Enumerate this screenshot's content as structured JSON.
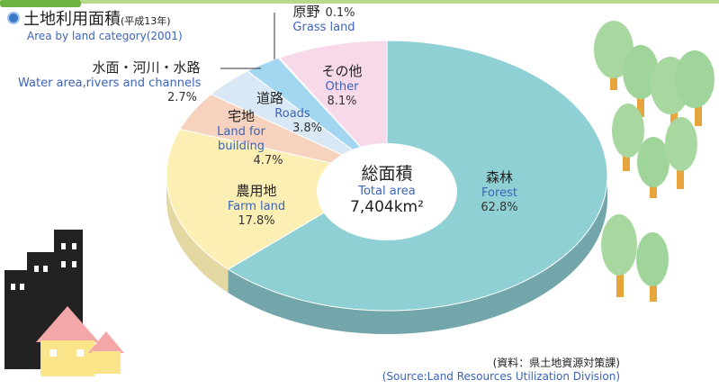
{
  "chart_data": {
    "type": "pie",
    "title": "土地利用面積",
    "title_note": "(平成13年)",
    "subtitle": "Area by land category(2001)",
    "categories": [
      "森林",
      "農用地",
      "宅地",
      "道路",
      "水面・河川・水路",
      "原野",
      "その他"
    ],
    "categories_en": [
      "Forest",
      "Farm land",
      "Land for building",
      "Roads",
      "Water area,rivers and channels",
      "Grass land",
      "Other"
    ],
    "values": [
      62.8,
      17.8,
      4.7,
      3.8,
      2.7,
      0.1,
      8.1
    ],
    "value_labels": [
      "62.8%",
      "17.8%",
      "4.7%",
      "3.8%",
      "2.7%",
      "0.1%",
      "8.1%"
    ],
    "colors": [
      "#8fd0d4",
      "#fcefb4",
      "#f6d2bf",
      "#d9e8f5",
      "#a3d6f0",
      "#c8e6f4",
      "#f7d9ea"
    ],
    "center_label": "総面積",
    "center_label_en": "Total area",
    "total_label": "7,404km²",
    "source": "(資料：県土地資源対策課)",
    "source_en": "(Source:Land Resources Utilization Division)"
  }
}
